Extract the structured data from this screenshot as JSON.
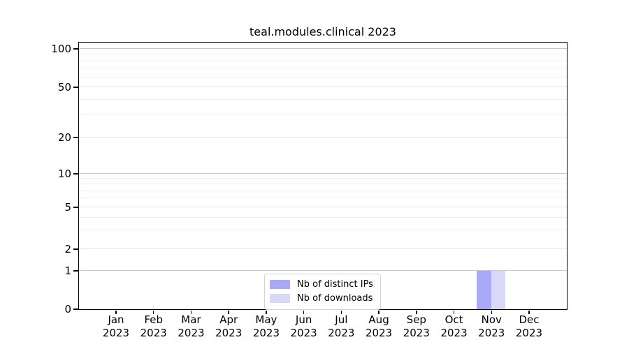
{
  "chart_data": {
    "type": "bar",
    "title": "teal.modules.clinical 2023",
    "categories": [
      "Jan",
      "Feb",
      "Mar",
      "Apr",
      "May",
      "Jun",
      "Jul",
      "Aug",
      "Sep",
      "Oct",
      "Nov",
      "Dec"
    ],
    "x_year_label": "2023",
    "series": [
      {
        "name": "Nb of distinct IPs",
        "color": "#a9a9f7",
        "values": [
          0,
          0,
          0,
          0,
          0,
          0,
          0,
          0,
          0,
          0,
          1,
          0
        ]
      },
      {
        "name": "Nb of downloads",
        "color": "#d9d9f7",
        "values": [
          0,
          0,
          0,
          0,
          0,
          0,
          0,
          0,
          0,
          0,
          1,
          0
        ]
      }
    ],
    "yticks": [
      0,
      1,
      2,
      5,
      10,
      20,
      50,
      100
    ],
    "y_minor_ticks": [
      3,
      4,
      6,
      7,
      8,
      9,
      30,
      40,
      60,
      70,
      80,
      90
    ],
    "ylim": [
      0,
      100
    ],
    "yscale": "log-above-1-with-zero-baseline",
    "grid": true,
    "legend_position": "bottom-center",
    "colors": {
      "grid_major": "#c9c9c9",
      "grid_mid": "#e4e4e4",
      "grid_minor": "#efefef",
      "spine": "#000000",
      "text": "#000000",
      "legend_border": "#d4d4d4"
    }
  }
}
